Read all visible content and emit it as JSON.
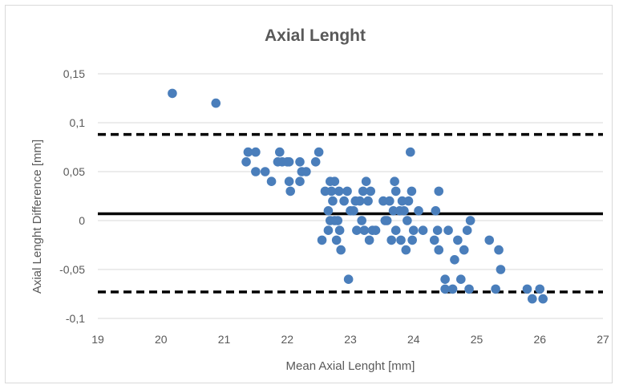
{
  "chart_data": {
    "type": "scatter",
    "title": "Axial Lenght",
    "xlabel": "Mean Axial Lenght [mm]",
    "ylabel": "Axial Lenght Difference [mm]",
    "xlim": [
      19,
      27
    ],
    "ylim": [
      -0.1,
      0.15
    ],
    "x_ticks": [
      19,
      20,
      21,
      22,
      23,
      24,
      25,
      26,
      27
    ],
    "x_tick_labels": [
      "19",
      "20",
      "21",
      "22",
      "23",
      "24",
      "25",
      "26",
      "27"
    ],
    "y_ticks": [
      -0.1,
      -0.05,
      0,
      0.05,
      0.1,
      0.15
    ],
    "y_tick_labels": [
      "-0,1",
      "-0,05",
      "0",
      "0,05",
      "0,1",
      "0,15"
    ],
    "grid": "horizontal",
    "legend": "none",
    "marker_color": "#4a7ebb",
    "reference_lines": [
      {
        "kind": "mean",
        "y": 0.007,
        "style": "solid",
        "color": "#000000"
      },
      {
        "kind": "upper-limit",
        "y": 0.088,
        "style": "dashed",
        "color": "#000000"
      },
      {
        "kind": "lower-limit",
        "y": -0.073,
        "style": "dashed",
        "color": "#000000"
      }
    ],
    "points": [
      [
        20.18,
        0.13
      ],
      [
        20.87,
        0.12
      ],
      [
        21.35,
        0.06
      ],
      [
        21.38,
        0.07
      ],
      [
        21.5,
        0.07
      ],
      [
        21.5,
        0.05
      ],
      [
        21.65,
        0.05
      ],
      [
        21.75,
        0.04
      ],
      [
        21.85,
        0.06
      ],
      [
        21.88,
        0.07
      ],
      [
        21.92,
        0.06
      ],
      [
        22.0,
        0.06
      ],
      [
        22.03,
        0.06
      ],
      [
        22.03,
        0.04
      ],
      [
        22.05,
        0.03
      ],
      [
        22.2,
        0.06
      ],
      [
        22.2,
        0.04
      ],
      [
        22.23,
        0.05
      ],
      [
        22.3,
        0.05
      ],
      [
        22.45,
        0.06
      ],
      [
        22.5,
        0.07
      ],
      [
        22.55,
        -0.02
      ],
      [
        22.6,
        0.03
      ],
      [
        22.65,
        0.01
      ],
      [
        22.65,
        -0.01
      ],
      [
        22.68,
        0.04
      ],
      [
        22.68,
        0.0
      ],
      [
        22.7,
        0.03
      ],
      [
        22.72,
        0.02
      ],
      [
        22.75,
        0.04
      ],
      [
        22.75,
        0.0
      ],
      [
        22.78,
        -0.02
      ],
      [
        22.8,
        0.0
      ],
      [
        22.82,
        0.03
      ],
      [
        22.83,
        -0.01
      ],
      [
        22.85,
        -0.03
      ],
      [
        22.9,
        0.02
      ],
      [
        22.95,
        0.03
      ],
      [
        22.97,
        -0.06
      ],
      [
        23.0,
        0.01
      ],
      [
        23.05,
        0.01
      ],
      [
        23.08,
        0.02
      ],
      [
        23.1,
        -0.01
      ],
      [
        23.15,
        0.02
      ],
      [
        23.18,
        0.0
      ],
      [
        23.2,
        0.03
      ],
      [
        23.22,
        -0.01
      ],
      [
        23.25,
        0.04
      ],
      [
        23.28,
        0.02
      ],
      [
        23.3,
        -0.02
      ],
      [
        23.32,
        0.03
      ],
      [
        23.35,
        -0.01
      ],
      [
        23.4,
        -0.01
      ],
      [
        23.52,
        0.02
      ],
      [
        23.55,
        0.0
      ],
      [
        23.58,
        0.0
      ],
      [
        23.62,
        0.02
      ],
      [
        23.65,
        -0.02
      ],
      [
        23.68,
        0.01
      ],
      [
        23.7,
        0.04
      ],
      [
        23.72,
        0.03
      ],
      [
        23.72,
        -0.01
      ],
      [
        23.78,
        0.01
      ],
      [
        23.8,
        -0.02
      ],
      [
        23.82,
        0.02
      ],
      [
        23.85,
        0.01
      ],
      [
        23.88,
        -0.03
      ],
      [
        23.9,
        0.0
      ],
      [
        23.92,
        0.02
      ],
      [
        23.95,
        0.07
      ],
      [
        23.97,
        0.03
      ],
      [
        23.98,
        -0.02
      ],
      [
        24.0,
        -0.01
      ],
      [
        24.08,
        0.01
      ],
      [
        24.15,
        -0.01
      ],
      [
        24.33,
        -0.02
      ],
      [
        24.35,
        0.01
      ],
      [
        24.38,
        -0.01
      ],
      [
        24.4,
        0.03
      ],
      [
        24.4,
        -0.03
      ],
      [
        24.5,
        -0.06
      ],
      [
        24.5,
        -0.07
      ],
      [
        24.55,
        -0.01
      ],
      [
        24.62,
        -0.07
      ],
      [
        24.65,
        -0.04
      ],
      [
        24.7,
        -0.02
      ],
      [
        24.75,
        -0.06
      ],
      [
        24.8,
        -0.03
      ],
      [
        24.85,
        -0.01
      ],
      [
        24.88,
        -0.07
      ],
      [
        24.9,
        0.0
      ],
      [
        25.2,
        -0.02
      ],
      [
        25.3,
        -0.07
      ],
      [
        25.35,
        -0.03
      ],
      [
        25.38,
        -0.05
      ],
      [
        25.8,
        -0.07
      ],
      [
        25.88,
        -0.08
      ],
      [
        26.0,
        -0.07
      ],
      [
        26.05,
        -0.08
      ]
    ]
  }
}
